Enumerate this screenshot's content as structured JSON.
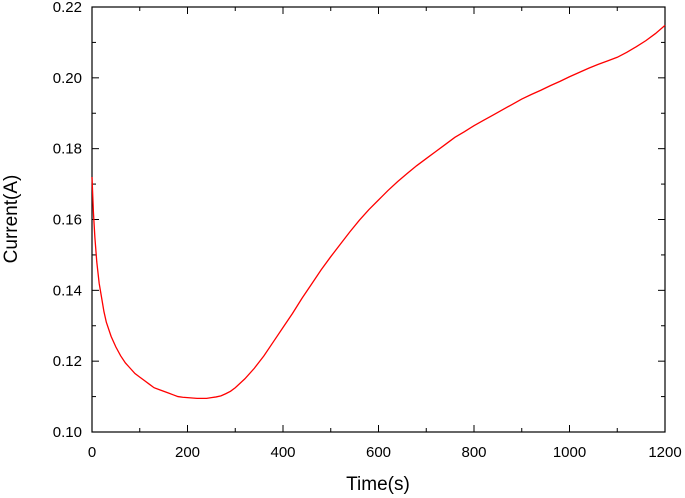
{
  "chart_data": {
    "type": "line",
    "xlabel": "Time(s)",
    "ylabel": "Current(A)",
    "xlim": [
      0,
      1200
    ],
    "ylim": [
      0.1,
      0.22
    ],
    "x_ticks": [
      0,
      200,
      400,
      600,
      800,
      1000,
      1200
    ],
    "y_ticks": [
      0.1,
      0.12,
      0.14,
      0.16,
      0.18,
      0.2,
      0.22
    ],
    "x_tick_labels": [
      "0",
      "200",
      "400",
      "600",
      "800",
      "1000",
      "1200"
    ],
    "y_tick_labels": [
      "0.10",
      "0.12",
      "0.14",
      "0.16",
      "0.18",
      "0.20",
      "0.22"
    ],
    "grid": false,
    "series": [
      {
        "color": "#ff0000",
        "x": [
          0,
          3,
          6,
          10,
          15,
          20,
          25,
          30,
          40,
          50,
          60,
          70,
          80,
          90,
          100,
          110,
          120,
          130,
          140,
          150,
          160,
          170,
          180,
          190,
          200,
          210,
          220,
          230,
          240,
          250,
          260,
          270,
          280,
          290,
          300,
          320,
          340,
          360,
          380,
          400,
          420,
          440,
          460,
          480,
          500,
          520,
          540,
          560,
          580,
          600,
          620,
          640,
          660,
          680,
          700,
          720,
          740,
          760,
          780,
          800,
          820,
          840,
          860,
          880,
          900,
          920,
          940,
          960,
          980,
          1000,
          1020,
          1040,
          1060,
          1080,
          1100,
          1120,
          1140,
          1160,
          1180,
          1200
        ],
        "y": [
          0.172,
          0.162,
          0.155,
          0.148,
          0.142,
          0.138,
          0.134,
          0.131,
          0.127,
          0.124,
          0.1215,
          0.1195,
          0.118,
          0.1165,
          0.1155,
          0.1145,
          0.1135,
          0.1125,
          0.112,
          0.1115,
          0.111,
          0.1105,
          0.11,
          0.1098,
          0.1097,
          0.1096,
          0.1095,
          0.1095,
          0.1095,
          0.1097,
          0.1099,
          0.1102,
          0.1108,
          0.1115,
          0.1125,
          0.115,
          0.118,
          0.1215,
          0.1255,
          0.1295,
          0.1335,
          0.1378,
          0.1418,
          0.1458,
          0.1495,
          0.153,
          0.1565,
          0.1598,
          0.1628,
          0.1655,
          0.1682,
          0.1707,
          0.173,
          0.1752,
          0.1772,
          0.1792,
          0.1812,
          0.1832,
          0.1848,
          0.1865,
          0.188,
          0.1895,
          0.191,
          0.1925,
          0.194,
          0.1953,
          0.1965,
          0.1978,
          0.199,
          0.2003,
          0.2015,
          0.2027,
          0.2038,
          0.2048,
          0.2058,
          0.2072,
          0.2088,
          0.2105,
          0.2125,
          0.2148
        ]
      }
    ]
  }
}
